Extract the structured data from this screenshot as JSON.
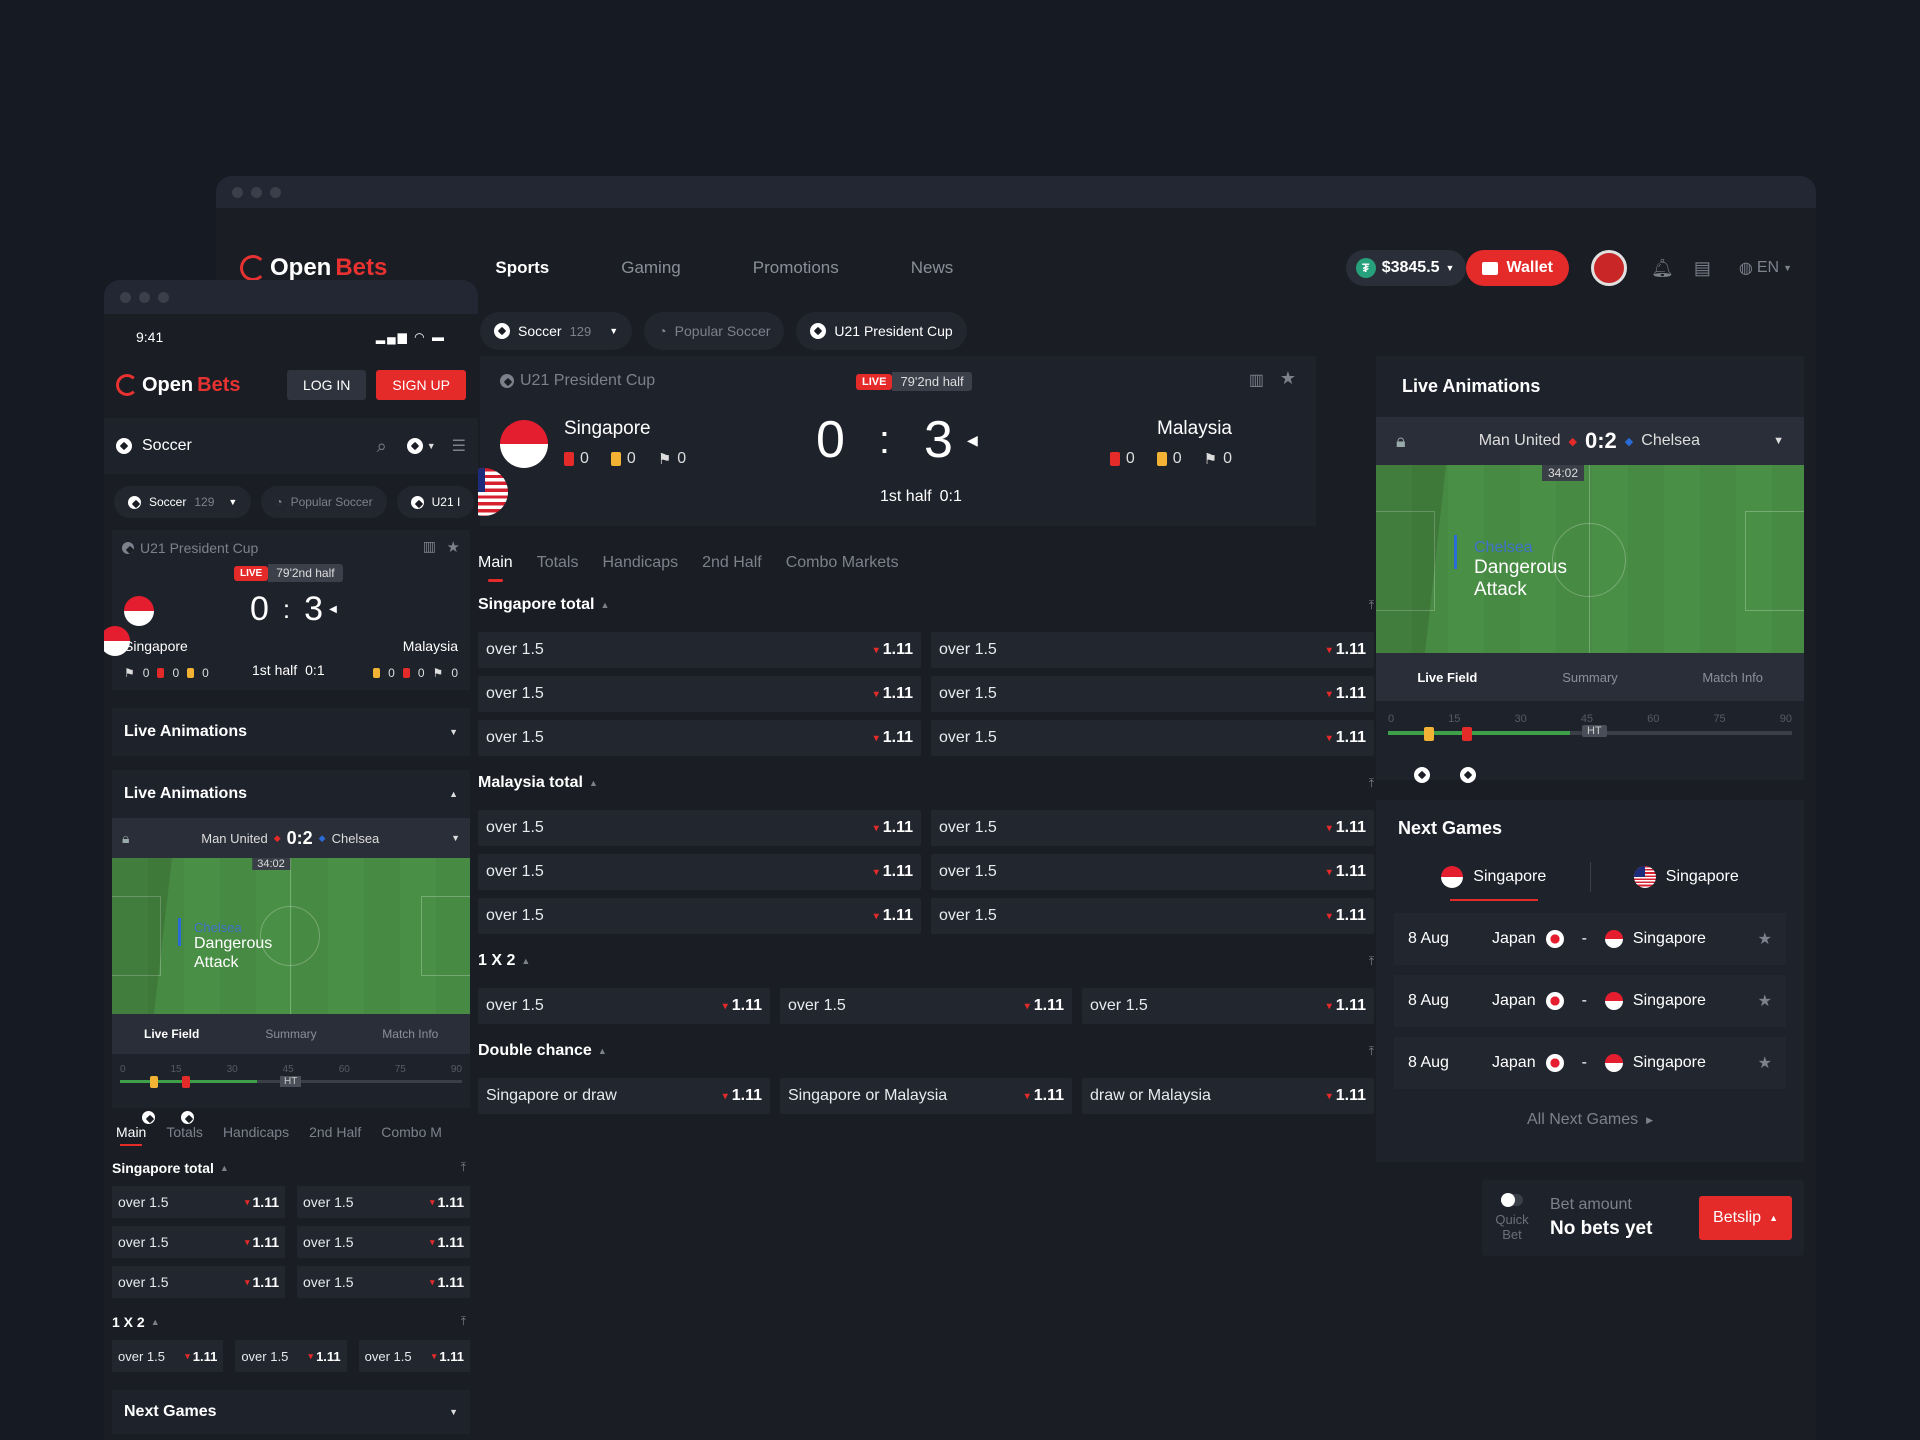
{
  "desktop": {
    "logo": {
      "open": "Open",
      "bets": "Bets"
    },
    "nav": [
      "Sports",
      "Gaming",
      "Promotions",
      "News"
    ],
    "balance": "$3845.5",
    "wallet_label": "Wallet",
    "lang": "EN",
    "chips": [
      {
        "label": "Soccer",
        "count": "129"
      },
      {
        "label": "Popular Soccer"
      },
      {
        "label": "U21 President Cup"
      }
    ],
    "match": {
      "tournament": "U21 President Cup",
      "live": "LIVE",
      "live_time": "79'2nd half",
      "home": "Singapore",
      "away": "Malaysia",
      "home_score": "0",
      "away_score": "3",
      "separator": ":",
      "period": "1st half",
      "period_score": "0:1",
      "home_stats": [
        "0",
        "0",
        "0"
      ],
      "away_stats": [
        "0",
        "0",
        "0"
      ]
    },
    "tabs": [
      "Main",
      "Totals",
      "Handicaps",
      "2nd Half",
      "Combo Markets"
    ],
    "groups": {
      "singapore_total": "Singapore total",
      "malaysia_total": "Malaysia total",
      "one_x_two": "1 X 2",
      "double_chance": "Double chance"
    },
    "odd_label": "over 1.5",
    "odd_value": "1.11",
    "double_chance": [
      {
        "label": "Singapore or draw",
        "value": "1.11"
      },
      {
        "label": "Singapore or Malaysia",
        "value": "1.11"
      },
      {
        "label": "draw or Malaysia",
        "value": "1.11"
      }
    ],
    "live_anim": {
      "title": "Live Animations",
      "home": "Man United",
      "score": "0:2",
      "away": "Chelsea",
      "clock": "34:02",
      "team": "Chelsea",
      "event_1": "Dangerous",
      "event_2": "Attack",
      "tabs": [
        "Live Field",
        "Summary",
        "Match Info"
      ],
      "ticks": [
        "0",
        "15",
        "30",
        "45",
        "60",
        "75",
        "90"
      ],
      "ht": "HT"
    },
    "next_games": {
      "title": "Next Games",
      "tab_a": "Singapore",
      "tab_b": "Singapore",
      "rows": [
        {
          "date": "8 Aug",
          "home": "Japan",
          "sep": "-",
          "away": "Singapore"
        },
        {
          "date": "8 Aug",
          "home": "Japan",
          "sep": "-",
          "away": "Singapore"
        },
        {
          "date": "8 Aug",
          "home": "Japan",
          "sep": "-",
          "away": "Singapore"
        }
      ],
      "all": "All Next Games"
    },
    "betslip": {
      "quick_1": "Quick",
      "quick_2": "Bet",
      "amount_label": "Bet amount",
      "amount_value": "No bets yet",
      "button": "Betslip"
    }
  },
  "mobile": {
    "time": "9:41",
    "login": "LOG IN",
    "signup": "SIGN UP",
    "sport": "Soccer",
    "chips": [
      {
        "label": "Soccer",
        "count": "129"
      },
      {
        "label": "Popular Soccer"
      },
      {
        "label": "U21 I"
      }
    ],
    "tournament": "U21 President Cup",
    "live": "LIVE",
    "live_time": "79'2nd half",
    "home_score": "0",
    "away_score": "3",
    "separator": ":",
    "home": "Singapore",
    "away": "Malaysia",
    "period": "1st half",
    "period_score": "0:1",
    "stat": "0",
    "live_anim_collapsed": "Live Animations",
    "live_anim_expanded": "Live Animations",
    "tabs": [
      "Main",
      "Totals",
      "Handicaps",
      "2nd Half",
      "Combo M"
    ],
    "group_total": "Singapore total",
    "group_1x2": "1 X 2",
    "next_games": "Next Games"
  }
}
